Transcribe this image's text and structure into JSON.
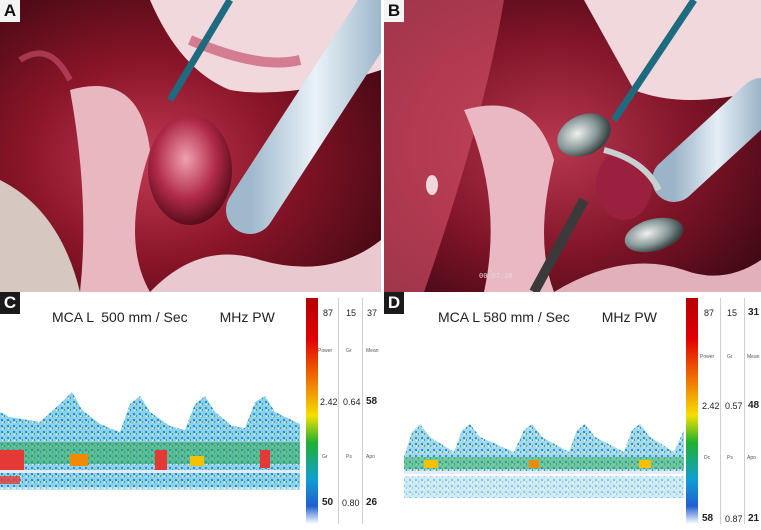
{
  "figure": {
    "panels": [
      {
        "label": "A"
      },
      {
        "label": "B",
        "timestamp": "00:07:28"
      },
      {
        "label": "C",
        "header": "MCA L  500 mm / Sec",
        "unit": "MHz PW",
        "scale_top": [
          "87",
          "15",
          "37"
        ],
        "scale_sub_top": [
          "Power",
          "Gr",
          "Mean"
        ],
        "scale_mid": [
          "2.42",
          "0.64",
          "58"
        ],
        "scale_sub_mid": [
          "Gr",
          "Ps",
          "Apo"
        ],
        "scale_bot": [
          "50",
          "0.80",
          "26"
        ]
      },
      {
        "label": "D",
        "header": "MCA L 580 mm / Sec",
        "unit": "MHz PW",
        "scale_top": [
          "87",
          "15",
          "31"
        ],
        "scale_sub_top": [
          "Power",
          "Gr",
          "Mean"
        ],
        "scale_mid": [
          "2.42",
          "0.57",
          "48"
        ],
        "scale_sub_mid": [
          "Dc",
          "Ps",
          "Apo"
        ],
        "scale_bot": [
          "58",
          "0.87",
          "21"
        ]
      }
    ],
    "colors": {
      "tissue": "#8a1528",
      "baseline": "#e8e8ff",
      "doppler_low": "#1e88e5",
      "doppler_high": "#e53935"
    }
  }
}
